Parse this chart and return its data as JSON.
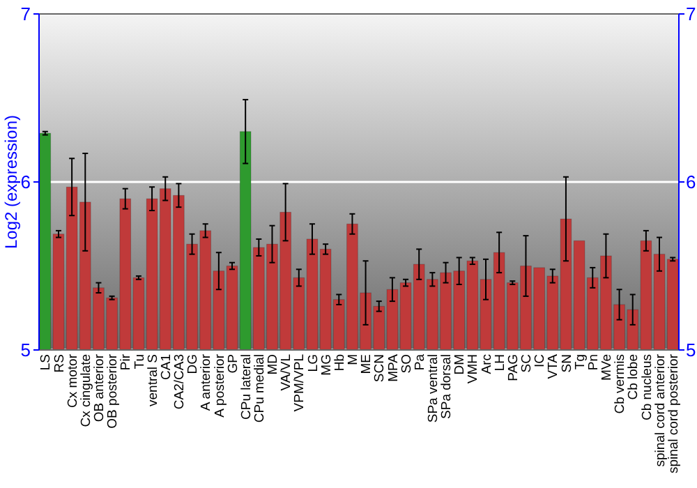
{
  "chart_data": {
    "type": "bar",
    "ylabel": "Log2 (expression)",
    "categories": [
      "LS",
      "RS",
      "Cx motor",
      "Cx cingulate",
      "OB anterior",
      "OB posterior",
      "Pir",
      "Tu",
      "ventral S",
      "CA1",
      "CA2/CA3",
      "DG",
      "A anterior",
      "A posterior",
      "GP",
      "CPu lateral",
      "CPu medial",
      "MD",
      "VA/VL",
      "VPM/VPL",
      "LG",
      "MG",
      "Hb",
      "M",
      "ME",
      "SCN",
      "MPA",
      "SO",
      "Pa",
      "SPa ventral",
      "SPa dorsal",
      "DM",
      "VMH",
      "Arc",
      "LH",
      "PAG",
      "SC",
      "IC",
      "VTA",
      "SN",
      "Tg",
      "Pn",
      "MVe",
      "Cb vermis",
      "Cb lobe",
      "Cb nucleus",
      "spinal cord anterior",
      "spinal cord posterior"
    ],
    "values": [
      6.29,
      5.69,
      5.97,
      5.88,
      5.37,
      5.31,
      5.9,
      5.43,
      5.9,
      5.96,
      5.92,
      5.63,
      5.71,
      5.47,
      5.5,
      6.3,
      5.61,
      5.63,
      5.82,
      5.43,
      5.66,
      5.6,
      5.3,
      5.75,
      5.34,
      5.26,
      5.36,
      5.4,
      5.51,
      5.42,
      5.46,
      5.47,
      5.53,
      5.42,
      5.58,
      5.4,
      5.5,
      5.49,
      5.44,
      5.78,
      5.65,
      5.43,
      5.56,
      5.27,
      5.24,
      5.65,
      5.57,
      5.54
    ],
    "errors": [
      0.01,
      0.02,
      0.17,
      0.29,
      0.03,
      0.01,
      0.06,
      0.01,
      0.07,
      0.07,
      0.07,
      0.06,
      0.04,
      0.11,
      0.02,
      0.19,
      0.05,
      0.11,
      0.17,
      0.05,
      0.09,
      0.03,
      0.03,
      0.06,
      0.19,
      0.03,
      0.07,
      0.02,
      0.09,
      0.04,
      0.06,
      0.08,
      0.02,
      0.12,
      0.12,
      0.01,
      0.18,
      null,
      0.04,
      0.25,
      null,
      0.06,
      0.13,
      0.09,
      0.09,
      0.06,
      0.1,
      0.01
    ],
    "colors": [
      "#2e9a2e",
      "#c03a3a",
      "#c03a3a",
      "#c03a3a",
      "#c03a3a",
      "#c03a3a",
      "#c03a3a",
      "#c03a3a",
      "#c03a3a",
      "#c03a3a",
      "#c03a3a",
      "#c03a3a",
      "#c03a3a",
      "#c03a3a",
      "#c03a3a",
      "#2e9a2e",
      "#c03a3a",
      "#c03a3a",
      "#c03a3a",
      "#c03a3a",
      "#c03a3a",
      "#c03a3a",
      "#c03a3a",
      "#c03a3a",
      "#c03a3a",
      "#c03a3a",
      "#c03a3a",
      "#c03a3a",
      "#c03a3a",
      "#c03a3a",
      "#c03a3a",
      "#c03a3a",
      "#c03a3a",
      "#c03a3a",
      "#c03a3a",
      "#c03a3a",
      "#c03a3a",
      "#c03a3a",
      "#c03a3a",
      "#c03a3a",
      "#c03a3a",
      "#c03a3a",
      "#c03a3a",
      "#c03a3a",
      "#c03a3a",
      "#c03a3a",
      "#c03a3a",
      "#c03a3a"
    ],
    "ylim": [
      5,
      7
    ],
    "yticks": [
      5,
      6,
      7
    ],
    "y2lim": [
      5,
      7
    ],
    "y2ticks": [
      5,
      6,
      7
    ],
    "grid": "y"
  }
}
